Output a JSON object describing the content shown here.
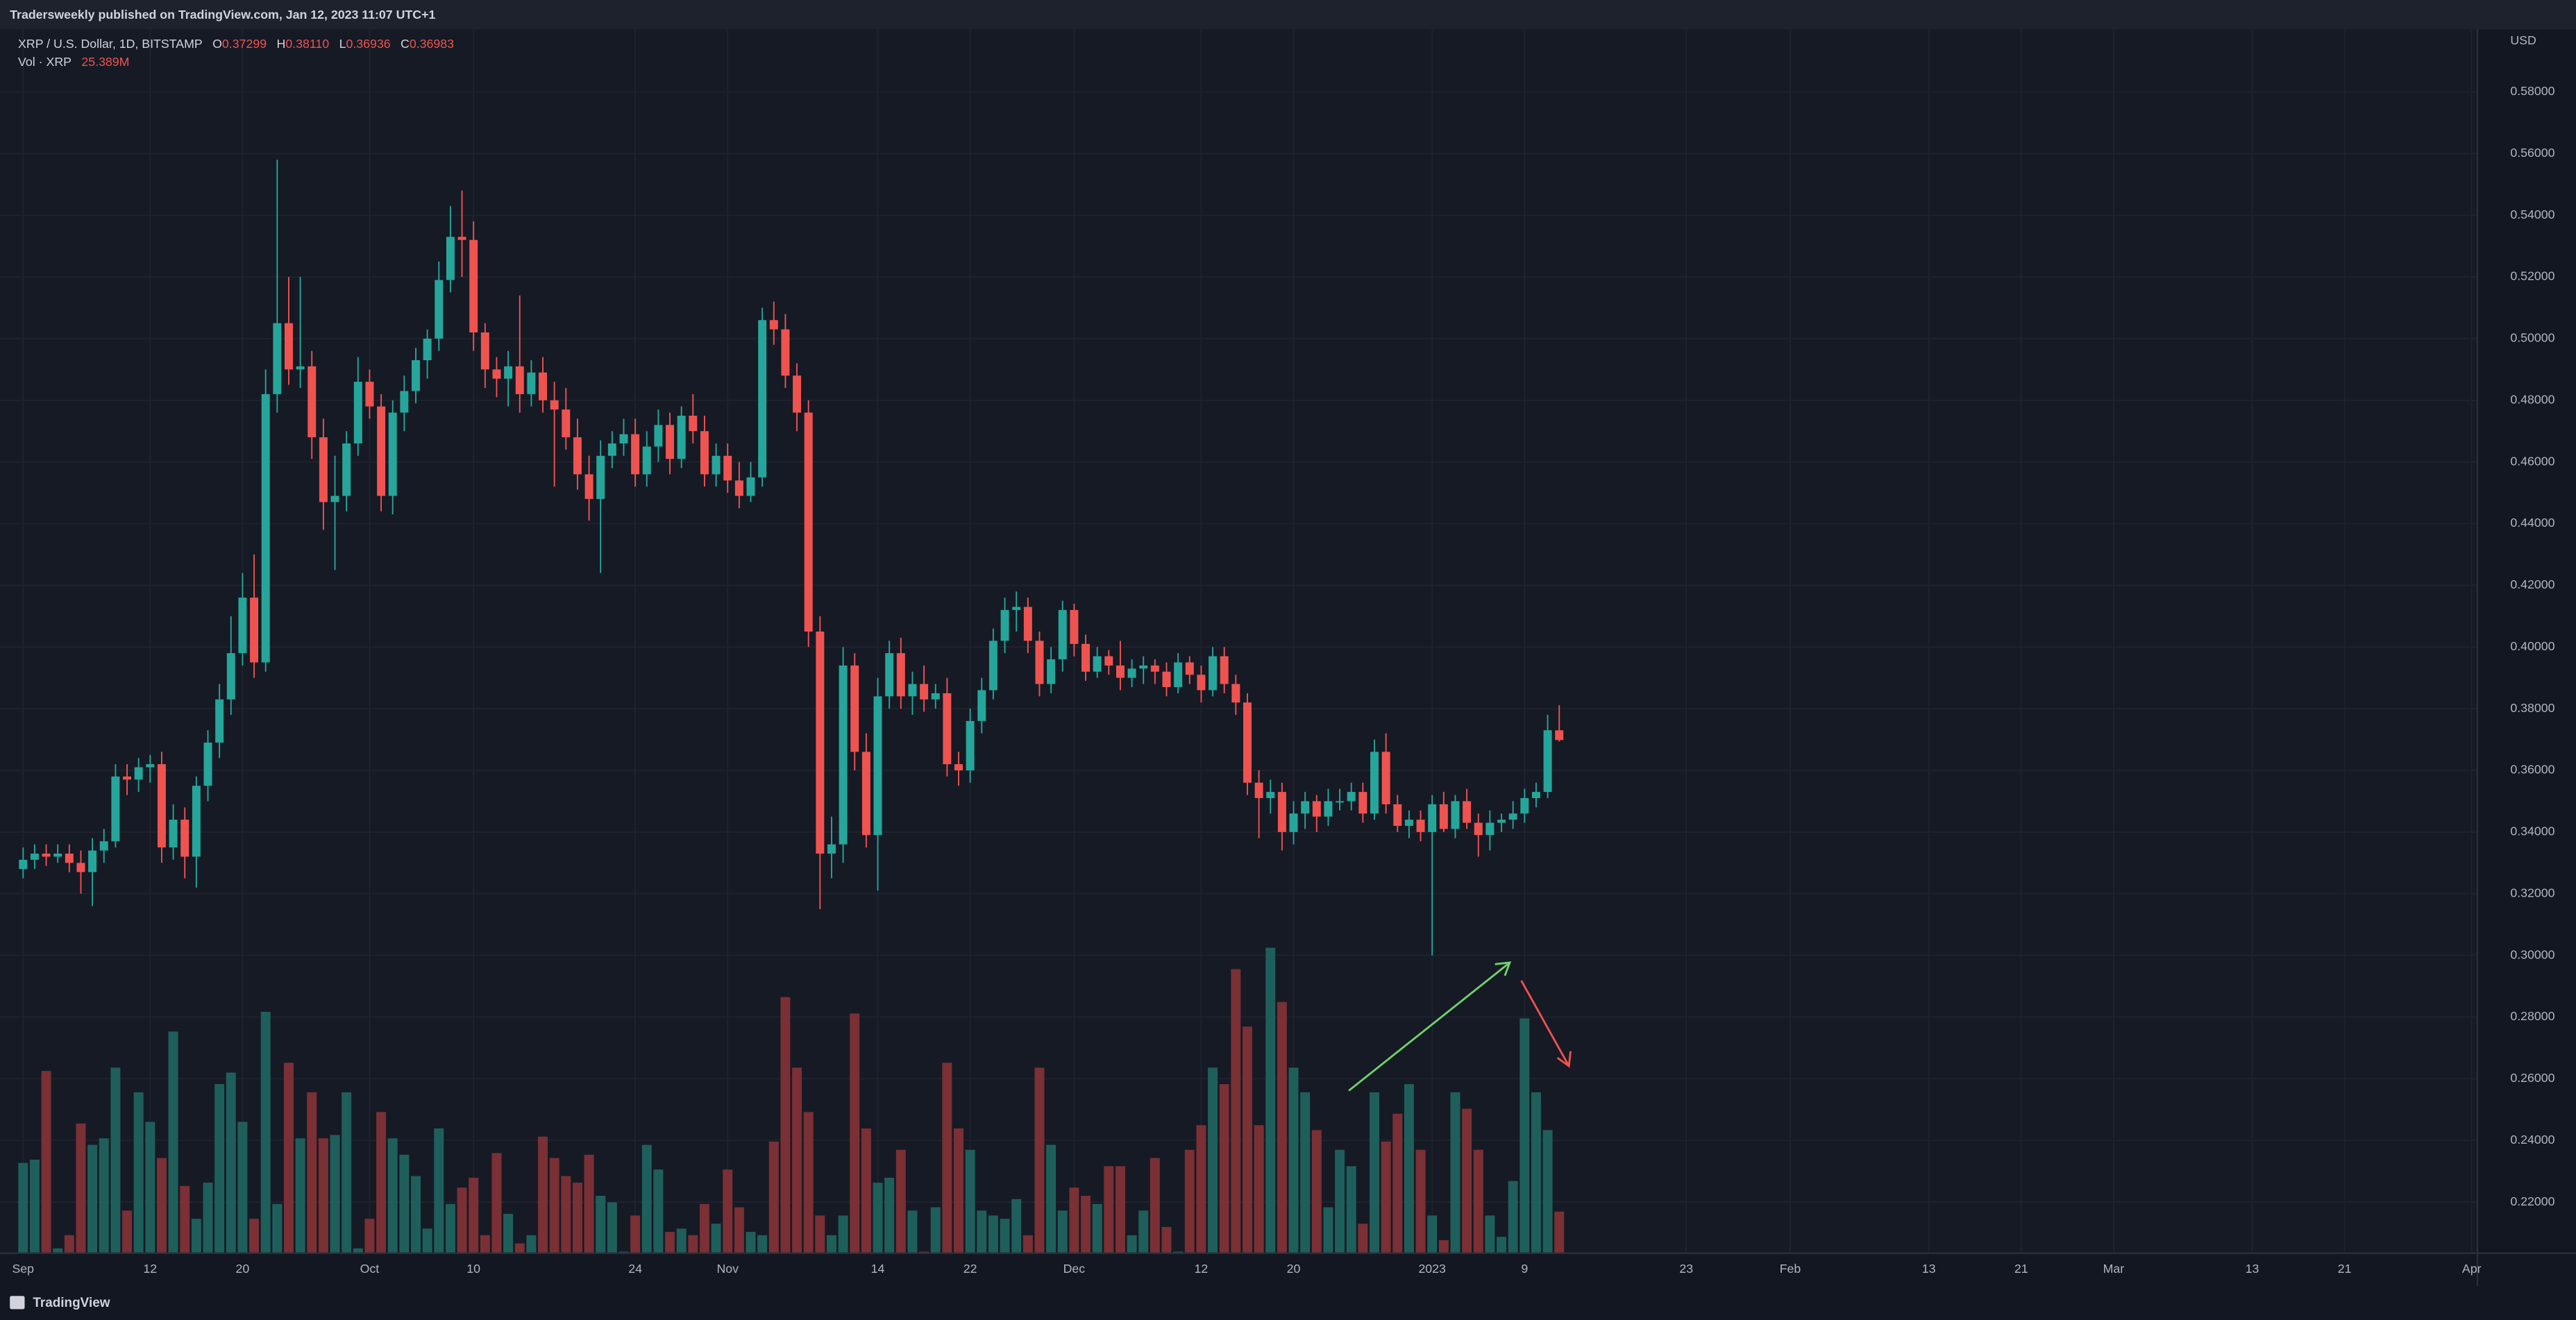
{
  "header": "Tradersweekly published on TradingView.com, Jan 12, 2023 11:07 UTC+1",
  "footer": "TradingView",
  "chart_data": {
    "type": "candlestick",
    "legend": {
      "symbol": "XRP / U.S. Dollar, 1D, BITSTAMP",
      "open": {
        "key": "O",
        "value": "0.37299"
      },
      "high": {
        "key": "H",
        "value": "0.38110"
      },
      "low": {
        "key": "L",
        "value": "0.36936"
      },
      "close": {
        "key": "C",
        "value": "0.36983"
      },
      "volume_name": "Vol · XRP",
      "volume_value": "25.389M"
    },
    "currency": "USD",
    "up_color": "#26a69a",
    "down_color": "#ef5350",
    "volume_up_color": "#1f5f5b",
    "volume_down_color": "#7a3034",
    "grid": true,
    "xlim": [
      -2,
      212.5
    ],
    "xticks": [
      {
        "value": 0,
        "label": "Sep"
      },
      {
        "value": 11,
        "label": "12"
      },
      {
        "value": 19,
        "label": "20"
      },
      {
        "value": 30,
        "label": "Oct"
      },
      {
        "value": 39,
        "label": "10"
      },
      {
        "value": 53,
        "label": "24"
      },
      {
        "value": 61,
        "label": "Nov"
      },
      {
        "value": 74,
        "label": "14"
      },
      {
        "value": 82,
        "label": "22"
      },
      {
        "value": 91,
        "label": "Dec"
      },
      {
        "value": 102,
        "label": "12"
      },
      {
        "value": 110,
        "label": "20"
      },
      {
        "value": 122,
        "label": "2023"
      },
      {
        "value": 130,
        "label": "9"
      },
      {
        "value": 144,
        "label": "23"
      },
      {
        "value": 153,
        "label": "Feb"
      },
      {
        "value": 165,
        "label": "13"
      },
      {
        "value": 173,
        "label": "21"
      },
      {
        "value": 181,
        "label": "Mar"
      },
      {
        "value": 193,
        "label": "13"
      },
      {
        "value": 201,
        "label": "21"
      },
      {
        "value": 212,
        "label": "Apr"
      }
    ],
    "ylim": [
      0.2034,
      0.6002
    ],
    "yticks": [
      {
        "value": 0.22,
        "label": "0.22000"
      },
      {
        "value": 0.24,
        "label": "0.24000"
      },
      {
        "value": 0.26,
        "label": "0.26000"
      },
      {
        "value": 0.28,
        "label": "0.28000"
      },
      {
        "value": 0.3,
        "label": "0.30000"
      },
      {
        "value": 0.32,
        "label": "0.32000"
      },
      {
        "value": 0.34,
        "label": "0.34000"
      },
      {
        "value": 0.36,
        "label": "0.36000"
      },
      {
        "value": 0.38,
        "label": "0.38000"
      },
      {
        "value": 0.4,
        "label": "0.40000"
      },
      {
        "value": 0.42,
        "label": "0.42000"
      },
      {
        "value": 0.44,
        "label": "0.44000"
      },
      {
        "value": 0.46,
        "label": "0.46000"
      },
      {
        "value": 0.48,
        "label": "0.48000"
      },
      {
        "value": 0.5,
        "label": "0.50000"
      },
      {
        "value": 0.52,
        "label": "0.52000"
      },
      {
        "value": 0.54,
        "label": "0.54000"
      },
      {
        "value": 0.56,
        "label": "0.56000"
      },
      {
        "value": 0.58,
        "label": "0.58000"
      }
    ],
    "volume_ylim": [
      0,
      745
    ],
    "candles": [
      [
        0.328,
        0.335,
        0.325,
        0.331
      ],
      [
        0.331,
        0.336,
        0.328,
        0.333
      ],
      [
        0.333,
        0.336,
        0.329,
        0.332
      ],
      [
        0.332,
        0.336,
        0.33,
        0.333
      ],
      [
        0.333,
        0.336,
        0.327,
        0.33
      ],
      [
        0.33,
        0.334,
        0.32,
        0.327
      ],
      [
        0.327,
        0.338,
        0.316,
        0.334
      ],
      [
        0.334,
        0.341,
        0.33,
        0.337
      ],
      [
        0.337,
        0.362,
        0.335,
        0.358
      ],
      [
        0.358,
        0.362,
        0.352,
        0.357
      ],
      [
        0.357,
        0.364,
        0.353,
        0.361
      ],
      [
        0.361,
        0.365,
        0.356,
        0.362
      ],
      [
        0.362,
        0.366,
        0.33,
        0.335
      ],
      [
        0.335,
        0.349,
        0.331,
        0.344
      ],
      [
        0.344,
        0.348,
        0.325,
        0.332
      ],
      [
        0.332,
        0.358,
        0.322,
        0.355
      ],
      [
        0.355,
        0.373,
        0.35,
        0.369
      ],
      [
        0.369,
        0.388,
        0.364,
        0.383
      ],
      [
        0.383,
        0.41,
        0.378,
        0.398
      ],
      [
        0.398,
        0.424,
        0.394,
        0.416
      ],
      [
        0.416,
        0.43,
        0.39,
        0.395
      ],
      [
        0.395,
        0.49,
        0.392,
        0.482
      ],
      [
        0.482,
        0.558,
        0.476,
        0.505
      ],
      [
        0.505,
        0.52,
        0.485,
        0.49
      ],
      [
        0.49,
        0.52,
        0.484,
        0.491
      ],
      [
        0.491,
        0.496,
        0.461,
        0.468
      ],
      [
        0.468,
        0.474,
        0.438,
        0.447
      ],
      [
        0.447,
        0.462,
        0.425,
        0.449
      ],
      [
        0.449,
        0.47,
        0.444,
        0.466
      ],
      [
        0.466,
        0.494,
        0.462,
        0.486
      ],
      [
        0.486,
        0.49,
        0.474,
        0.478
      ],
      [
        0.478,
        0.482,
        0.444,
        0.449
      ],
      [
        0.449,
        0.48,
        0.443,
        0.476
      ],
      [
        0.476,
        0.488,
        0.47,
        0.483
      ],
      [
        0.483,
        0.497,
        0.479,
        0.493
      ],
      [
        0.493,
        0.503,
        0.487,
        0.5
      ],
      [
        0.5,
        0.525,
        0.496,
        0.519
      ],
      [
        0.519,
        0.543,
        0.515,
        0.533
      ],
      [
        0.533,
        0.548,
        0.52,
        0.532
      ],
      [
        0.532,
        0.538,
        0.496,
        0.502
      ],
      [
        0.502,
        0.505,
        0.484,
        0.49
      ],
      [
        0.49,
        0.494,
        0.481,
        0.487
      ],
      [
        0.487,
        0.496,
        0.478,
        0.491
      ],
      [
        0.491,
        0.514,
        0.476,
        0.482
      ],
      [
        0.482,
        0.493,
        0.478,
        0.489
      ],
      [
        0.489,
        0.494,
        0.476,
        0.48
      ],
      [
        0.48,
        0.486,
        0.452,
        0.477
      ],
      [
        0.477,
        0.484,
        0.464,
        0.468
      ],
      [
        0.468,
        0.474,
        0.451,
        0.456
      ],
      [
        0.456,
        0.462,
        0.441,
        0.448
      ],
      [
        0.448,
        0.467,
        0.424,
        0.462
      ],
      [
        0.462,
        0.47,
        0.458,
        0.466
      ],
      [
        0.466,
        0.474,
        0.462,
        0.469
      ],
      [
        0.469,
        0.474,
        0.452,
        0.456
      ],
      [
        0.456,
        0.47,
        0.452,
        0.465
      ],
      [
        0.465,
        0.477,
        0.46,
        0.472
      ],
      [
        0.472,
        0.476,
        0.456,
        0.461
      ],
      [
        0.461,
        0.478,
        0.458,
        0.475
      ],
      [
        0.475,
        0.482,
        0.466,
        0.47
      ],
      [
        0.47,
        0.475,
        0.452,
        0.456
      ],
      [
        0.456,
        0.466,
        0.452,
        0.462
      ],
      [
        0.462,
        0.466,
        0.45,
        0.454
      ],
      [
        0.454,
        0.46,
        0.445,
        0.449
      ],
      [
        0.449,
        0.46,
        0.447,
        0.455
      ],
      [
        0.455,
        0.51,
        0.452,
        0.506
      ],
      [
        0.506,
        0.512,
        0.498,
        0.503
      ],
      [
        0.503,
        0.508,
        0.484,
        0.488
      ],
      [
        0.488,
        0.492,
        0.47,
        0.476
      ],
      [
        0.476,
        0.48,
        0.4,
        0.405
      ],
      [
        0.405,
        0.41,
        0.315,
        0.333
      ],
      [
        0.333,
        0.345,
        0.325,
        0.336
      ],
      [
        0.336,
        0.4,
        0.33,
        0.394
      ],
      [
        0.394,
        0.398,
        0.36,
        0.366
      ],
      [
        0.366,
        0.372,
        0.335,
        0.339
      ],
      [
        0.339,
        0.39,
        0.321,
        0.384
      ],
      [
        0.384,
        0.402,
        0.38,
        0.398
      ],
      [
        0.398,
        0.403,
        0.38,
        0.384
      ],
      [
        0.384,
        0.392,
        0.378,
        0.388
      ],
      [
        0.388,
        0.394,
        0.379,
        0.383
      ],
      [
        0.383,
        0.388,
        0.38,
        0.385
      ],
      [
        0.385,
        0.39,
        0.358,
        0.362
      ],
      [
        0.362,
        0.366,
        0.355,
        0.36
      ],
      [
        0.36,
        0.38,
        0.356,
        0.376
      ],
      [
        0.376,
        0.39,
        0.372,
        0.386
      ],
      [
        0.386,
        0.406,
        0.383,
        0.402
      ],
      [
        0.402,
        0.416,
        0.398,
        0.412
      ],
      [
        0.412,
        0.418,
        0.405,
        0.413
      ],
      [
        0.413,
        0.416,
        0.398,
        0.402
      ],
      [
        0.402,
        0.405,
        0.384,
        0.388
      ],
      [
        0.388,
        0.4,
        0.385,
        0.396
      ],
      [
        0.396,
        0.415,
        0.392,
        0.412
      ],
      [
        0.412,
        0.414,
        0.397,
        0.401
      ],
      [
        0.401,
        0.404,
        0.389,
        0.392
      ],
      [
        0.392,
        0.4,
        0.39,
        0.397
      ],
      [
        0.397,
        0.399,
        0.391,
        0.394
      ],
      [
        0.394,
        0.402,
        0.386,
        0.39
      ],
      [
        0.39,
        0.396,
        0.387,
        0.393
      ],
      [
        0.393,
        0.397,
        0.388,
        0.394
      ],
      [
        0.394,
        0.396,
        0.388,
        0.392
      ],
      [
        0.392,
        0.395,
        0.384,
        0.387
      ],
      [
        0.387,
        0.398,
        0.385,
        0.395
      ],
      [
        0.395,
        0.397,
        0.388,
        0.391
      ],
      [
        0.391,
        0.394,
        0.382,
        0.386
      ],
      [
        0.386,
        0.4,
        0.384,
        0.397
      ],
      [
        0.397,
        0.4,
        0.385,
        0.388
      ],
      [
        0.388,
        0.391,
        0.378,
        0.382
      ],
      [
        0.382,
        0.385,
        0.352,
        0.356
      ],
      [
        0.356,
        0.36,
        0.338,
        0.351
      ],
      [
        0.351,
        0.357,
        0.346,
        0.353
      ],
      [
        0.353,
        0.356,
        0.334,
        0.34
      ],
      [
        0.34,
        0.35,
        0.336,
        0.346
      ],
      [
        0.346,
        0.353,
        0.341,
        0.35
      ],
      [
        0.35,
        0.352,
        0.34,
        0.345
      ],
      [
        0.345,
        0.354,
        0.342,
        0.35
      ],
      [
        0.35,
        0.354,
        0.347,
        0.35
      ],
      [
        0.35,
        0.356,
        0.347,
        0.353
      ],
      [
        0.353,
        0.356,
        0.343,
        0.346
      ],
      [
        0.346,
        0.37,
        0.344,
        0.366
      ],
      [
        0.366,
        0.372,
        0.346,
        0.349
      ],
      [
        0.349,
        0.352,
        0.34,
        0.342
      ],
      [
        0.342,
        0.347,
        0.338,
        0.344
      ],
      [
        0.344,
        0.347,
        0.337,
        0.34
      ],
      [
        0.34,
        0.352,
        0.3,
        0.349
      ],
      [
        0.349,
        0.353,
        0.34,
        0.341
      ],
      [
        0.341,
        0.352,
        0.338,
        0.35
      ],
      [
        0.35,
        0.354,
        0.341,
        0.343
      ],
      [
        0.343,
        0.346,
        0.332,
        0.339
      ],
      [
        0.339,
        0.347,
        0.334,
        0.343
      ],
      [
        0.343,
        0.346,
        0.34,
        0.344
      ],
      [
        0.344,
        0.35,
        0.341,
        0.346
      ],
      [
        0.346,
        0.354,
        0.343,
        0.351
      ],
      [
        0.351,
        0.356,
        0.348,
        0.353
      ],
      [
        0.353,
        0.378,
        0.351,
        0.373
      ],
      [
        0.37299,
        0.3811,
        0.36936,
        0.36983
      ]
    ],
    "volumes": [
      55,
      57,
      111,
      3,
      11,
      79,
      66,
      70,
      113,
      26,
      98,
      80,
      58,
      135,
      41,
      21,
      43,
      103,
      110,
      80,
      21,
      147,
      30,
      116,
      70,
      98,
      70,
      72,
      98,
      3,
      21,
      86,
      70,
      60,
      47,
      15,
      76,
      30,
      40,
      46,
      11,
      61,
      24,
      6,
      11,
      71,
      58,
      47,
      43,
      60,
      35,
      31,
      1,
      23,
      66,
      51,
      13,
      15,
      11,
      30,
      18,
      51,
      28,
      13,
      11,
      68,
      156,
      113,
      86,
      23,
      11,
      23,
      146,
      76,
      43,
      46,
      63,
      26,
      1,
      28,
      116,
      76,
      63,
      26,
      23,
      21,
      33,
      11,
      113,
      66,
      26,
      40,
      35,
      30,
      53,
      53,
      11,
      26,
      58,
      16,
      1,
      63,
      78,
      113,
      103,
      173,
      138,
      78,
      186,
      153,
      113,
      98,
      75,
      28,
      63,
      53,
      18,
      98,
      68,
      85,
      103,
      63,
      23,
      8,
      98,
      88,
      63,
      23,
      10,
      44,
      143,
      98,
      75,
      25.389
    ]
  }
}
